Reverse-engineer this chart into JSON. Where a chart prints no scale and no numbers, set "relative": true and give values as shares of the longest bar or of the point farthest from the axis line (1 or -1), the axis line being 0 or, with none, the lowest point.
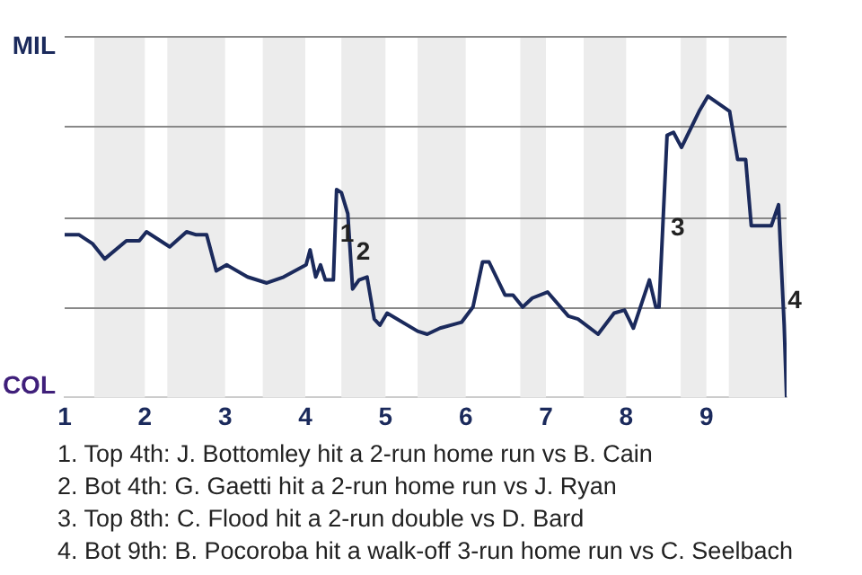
{
  "chart_data": {
    "type": "line",
    "relative": true,
    "x": [
      1.0,
      1.18,
      1.35,
      1.5,
      1.77,
      1.93,
      2.02,
      2.31,
      2.52,
      2.64,
      2.77,
      2.89,
      3.02,
      3.28,
      3.52,
      3.73,
      4.01,
      4.06,
      4.13,
      4.19,
      4.25,
      4.35,
      4.39,
      4.45,
      4.53,
      4.59,
      4.67,
      4.77,
      4.86,
      4.93,
      5.02,
      5.4,
      5.52,
      5.68,
      5.95,
      6.09,
      6.21,
      6.29,
      6.49,
      6.59,
      6.71,
      6.83,
      7.02,
      7.28,
      7.4,
      7.65,
      7.85,
      7.98,
      8.09,
      8.29,
      8.37,
      8.41,
      8.51,
      8.59,
      8.69,
      8.91,
      9.02,
      9.29,
      9.39,
      9.49,
      9.56,
      9.81,
      9.9,
      9.92,
      9.97,
      10.0
    ],
    "series": [
      {
        "color": "#1b2a5c",
        "values": [
          0.54,
          0.54,
          0.51,
          0.46,
          0.52,
          0.52,
          0.55,
          0.5,
          0.55,
          0.54,
          0.54,
          0.42,
          0.44,
          0.4,
          0.38,
          0.4,
          0.44,
          0.49,
          0.4,
          0.44,
          0.39,
          0.39,
          0.69,
          0.68,
          0.61,
          0.36,
          0.39,
          0.4,
          0.26,
          0.24,
          0.28,
          0.22,
          0.21,
          0.23,
          0.25,
          0.3,
          0.45,
          0.45,
          0.34,
          0.34,
          0.3,
          0.33,
          0.35,
          0.27,
          0.26,
          0.21,
          0.28,
          0.29,
          0.23,
          0.39,
          0.3,
          0.3,
          0.87,
          0.88,
          0.83,
          0.95,
          1,
          0.95,
          0.79,
          0.79,
          0.57,
          0.57,
          0.64,
          0.52,
          0.24,
          0
        ]
      }
    ],
    "xlim": [
      1,
      10
    ],
    "xticks": [
      1,
      2,
      3,
      4,
      5,
      6,
      7,
      8,
      9
    ],
    "grid": "y",
    "marker": "none",
    "line_style": "solid",
    "bands": [
      {
        "axis": "x",
        "from": 1.37,
        "to": 2,
        "color": "#ececec"
      },
      {
        "axis": "x",
        "from": 2.28,
        "to": 3,
        "color": "#ececec"
      },
      {
        "axis": "x",
        "from": 3.47,
        "to": 4,
        "color": "#ececec"
      },
      {
        "axis": "x",
        "from": 4.45,
        "to": 5,
        "color": "#ececec"
      },
      {
        "axis": "x",
        "from": 5.4,
        "to": 6,
        "color": "#ececec"
      },
      {
        "axis": "x",
        "from": 6.68,
        "to": 7,
        "color": "#ececec"
      },
      {
        "axis": "x",
        "from": 7.47,
        "to": 8,
        "color": "#ececec"
      },
      {
        "axis": "x",
        "from": 8.68,
        "to": 9,
        "color": "#ececec"
      },
      {
        "axis": "x",
        "from": 9.28,
        "to": 10,
        "color": "#ececec"
      }
    ],
    "annotations": [
      {
        "text": "1",
        "x": 4.39,
        "y": 0.54
      },
      {
        "text": "2",
        "x": 4.59,
        "y": 0.48
      },
      {
        "text": "3",
        "x": 8.51,
        "y": 0.56
      },
      {
        "text": "4",
        "x": 9.97,
        "y": 0.32
      },
      "MIL",
      "COL",
      "1. Top 4th: J. Bottomley hit a 2-run home run vs B. Cain",
      "2. Bot 4th: G. Gaetti hit a 2-run home run vs J. Ryan",
      "3. Top 8th: C. Flood hit a 2-run double vs D. Bard",
      "4. Bot 9th: B. Pocoroba hit a walk-off 3-run home run vs C. Seelbach"
    ]
  }
}
